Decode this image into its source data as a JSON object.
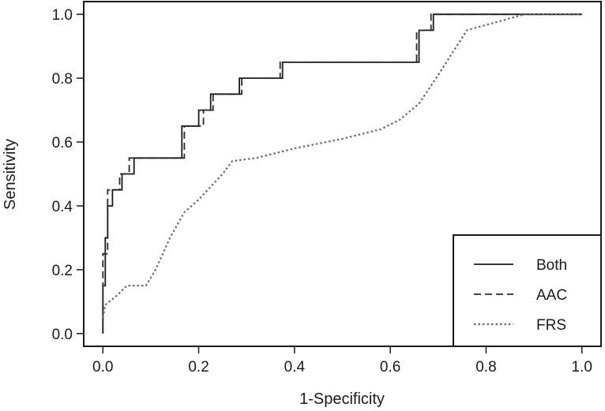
{
  "chart_data": {
    "type": "line",
    "title": "",
    "xlabel": "1-Specificity",
    "ylabel": "Sensitivity",
    "xlim": [
      -0.04,
      1.04
    ],
    "ylim": [
      -0.04,
      1.04
    ],
    "xticks": [
      "0.0",
      "0.2",
      "0.4",
      "0.6",
      "0.8",
      "1.0"
    ],
    "yticks": [
      "0.0",
      "0.2",
      "0.4",
      "0.6",
      "0.8",
      "1.0"
    ],
    "grid": false,
    "legend_position": "bottom-right",
    "series": [
      {
        "name": "Both",
        "line_style": "solid",
        "color": "#1a1a1a",
        "points": [
          [
            0,
            0
          ],
          [
            0,
            0.15
          ],
          [
            0.005,
            0.15
          ],
          [
            0.005,
            0.3
          ],
          [
            0.01,
            0.3
          ],
          [
            0.01,
            0.4
          ],
          [
            0.02,
            0.4
          ],
          [
            0.02,
            0.45
          ],
          [
            0.04,
            0.45
          ],
          [
            0.04,
            0.5
          ],
          [
            0.065,
            0.5
          ],
          [
            0.065,
            0.55
          ],
          [
            0.165,
            0.55
          ],
          [
            0.165,
            0.65
          ],
          [
            0.2,
            0.65
          ],
          [
            0.2,
            0.7
          ],
          [
            0.225,
            0.7
          ],
          [
            0.225,
            0.75
          ],
          [
            0.285,
            0.75
          ],
          [
            0.285,
            0.8
          ],
          [
            0.375,
            0.8
          ],
          [
            0.375,
            0.85
          ],
          [
            0.66,
            0.85
          ],
          [
            0.66,
            0.95
          ],
          [
            0.69,
            0.95
          ],
          [
            0.69,
            1.0
          ],
          [
            1.0,
            1.0
          ]
        ]
      },
      {
        "name": "AAC",
        "line_style": "dashed",
        "color": "#2a2a2a",
        "points": [
          [
            0,
            0
          ],
          [
            0,
            0.25
          ],
          [
            0.01,
            0.25
          ],
          [
            0.01,
            0.45
          ],
          [
            0.035,
            0.45
          ],
          [
            0.035,
            0.5
          ],
          [
            0.055,
            0.5
          ],
          [
            0.055,
            0.55
          ],
          [
            0.17,
            0.55
          ],
          [
            0.17,
            0.65
          ],
          [
            0.21,
            0.65
          ],
          [
            0.21,
            0.7
          ],
          [
            0.23,
            0.7
          ],
          [
            0.23,
            0.75
          ],
          [
            0.29,
            0.75
          ],
          [
            0.29,
            0.8
          ],
          [
            0.37,
            0.8
          ],
          [
            0.37,
            0.85
          ],
          [
            0.655,
            0.85
          ],
          [
            0.655,
            0.95
          ],
          [
            0.685,
            0.95
          ],
          [
            0.685,
            1.0
          ],
          [
            1.0,
            1.0
          ]
        ]
      },
      {
        "name": "FRS",
        "line_style": "dotted",
        "color": "#6a6a6a",
        "points": [
          [
            0,
            0.05
          ],
          [
            0.005,
            0.09
          ],
          [
            0.03,
            0.12
          ],
          [
            0.05,
            0.15
          ],
          [
            0.09,
            0.15
          ],
          [
            0.11,
            0.2
          ],
          [
            0.14,
            0.3
          ],
          [
            0.17,
            0.38
          ],
          [
            0.2,
            0.42
          ],
          [
            0.25,
            0.5
          ],
          [
            0.27,
            0.54
          ],
          [
            0.32,
            0.55
          ],
          [
            0.4,
            0.58
          ],
          [
            0.5,
            0.61
          ],
          [
            0.58,
            0.64
          ],
          [
            0.62,
            0.67
          ],
          [
            0.66,
            0.72
          ],
          [
            0.7,
            0.81
          ],
          [
            0.76,
            0.95
          ],
          [
            0.88,
            1.0
          ],
          [
            1.0,
            1.0
          ]
        ]
      }
    ]
  }
}
